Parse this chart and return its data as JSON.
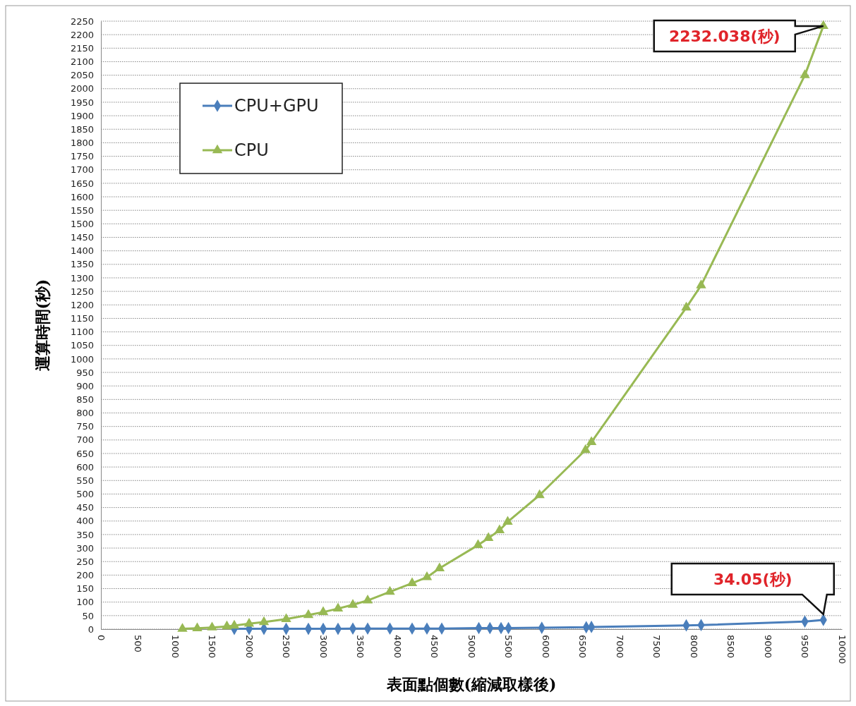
{
  "chart_data": {
    "type": "line",
    "xlabel": "表面點個數(縮減取樣後)",
    "ylabel": "運算時間(秒)",
    "xlim": [
      0,
      10000
    ],
    "xticks": [
      0,
      500,
      1000,
      1500,
      2000,
      2500,
      3000,
      3500,
      4000,
      4500,
      5000,
      5500,
      6000,
      6500,
      7000,
      7500,
      8000,
      8500,
      9000,
      9500,
      10000
    ],
    "ylim": [
      0,
      2250
    ],
    "yticks": [
      0,
      50,
      100,
      150,
      200,
      250,
      300,
      350,
      400,
      450,
      500,
      550,
      600,
      650,
      700,
      750,
      800,
      850,
      900,
      950,
      1000,
      1050,
      1100,
      1150,
      1200,
      1250,
      1300,
      1350,
      1400,
      1450,
      1500,
      1550,
      1600,
      1650,
      1700,
      1750,
      1800,
      1850,
      1900,
      1950,
      2000,
      2050,
      2100,
      2150,
      2200,
      2250
    ],
    "grid": "y",
    "legend": "top left",
    "series": [
      {
        "name": "CPU+GPU",
        "color": "#4a7ebb",
        "marker": "diamond",
        "x": [
          1800,
          2000,
          2200,
          2500,
          2800,
          3000,
          3200,
          3400,
          3600,
          3900,
          4200,
          4400,
          4600,
          5100,
          5250,
          5400,
          5500,
          5950,
          6550,
          6620,
          7900,
          8100,
          9500,
          9750
        ],
        "values": [
          1,
          1,
          1,
          1,
          1,
          1,
          1,
          2,
          2,
          2,
          2,
          2,
          2,
          4,
          4,
          4,
          4,
          5,
          7,
          8,
          14,
          15,
          28,
          34.05
        ]
      },
      {
        "name": "CPU",
        "color": "#98b954",
        "marker": "triangle",
        "x": [
          1100,
          1300,
          1500,
          1700,
          1800,
          2000,
          2200,
          2500,
          2800,
          3000,
          3200,
          3400,
          3600,
          3900,
          4200,
          4400,
          4570,
          5090,
          5230,
          5380,
          5490,
          5920,
          6540,
          6620,
          7900,
          8100,
          9500,
          9750
        ],
        "values": [
          1,
          3,
          6,
          10,
          13,
          20,
          26,
          37,
          52,
          63,
          76,
          90,
          106,
          138,
          170,
          192,
          225,
          311,
          337,
          366,
          397,
          496,
          663,
          692,
          1190,
          1272,
          2050,
          2232.038
        ]
      }
    ],
    "annotations": [
      {
        "text": "2232.038(秒)",
        "x": 9750,
        "y": 2232.038
      },
      {
        "text": "34.05(秒)",
        "x": 9750,
        "y": 34.05
      }
    ]
  }
}
